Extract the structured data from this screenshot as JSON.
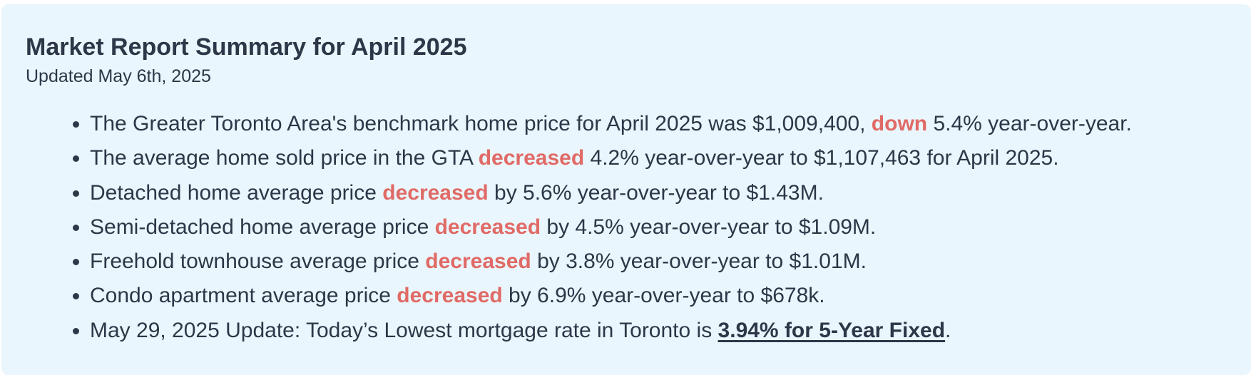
{
  "header": {
    "title": "Market Report Summary for April 2025",
    "subtitle": "Updated May 6th, 2025"
  },
  "items": [
    [
      {
        "kind": "plain",
        "text": "The Greater Toronto Area's benchmark home price for April 2025 was $1,009,400, "
      },
      {
        "kind": "highlight",
        "text": "down"
      },
      {
        "kind": "plain",
        "text": " 5.4% year-over-year."
      }
    ],
    [
      {
        "kind": "plain",
        "text": "The average home sold price in the GTA "
      },
      {
        "kind": "highlight",
        "text": "decreased"
      },
      {
        "kind": "plain",
        "text": " 4.2% year-over-year to $1,107,463 for April 2025."
      }
    ],
    [
      {
        "kind": "plain",
        "text": "Detached home average price "
      },
      {
        "kind": "highlight",
        "text": "decreased"
      },
      {
        "kind": "plain",
        "text": " by 5.6% year-over-year to $1.43M."
      }
    ],
    [
      {
        "kind": "plain",
        "text": "Semi-detached home average price "
      },
      {
        "kind": "highlight",
        "text": "decreased"
      },
      {
        "kind": "plain",
        "text": " by 4.5% year-over-year to $1.09M."
      }
    ],
    [
      {
        "kind": "plain",
        "text": "Freehold townhouse average price "
      },
      {
        "kind": "highlight",
        "text": "decreased"
      },
      {
        "kind": "plain",
        "text": " by 3.8% year-over-year to $1.01M."
      }
    ],
    [
      {
        "kind": "plain",
        "text": "Condo apartment average price "
      },
      {
        "kind": "highlight",
        "text": "decreased"
      },
      {
        "kind": "plain",
        "text": " by 6.9% year-over-year to $678k."
      }
    ],
    [
      {
        "kind": "plain",
        "text": "May 29, 2025 Update: Today’s Lowest mortgage rate in Toronto is "
      },
      {
        "kind": "link",
        "text": "3.94% for 5-Year Fixed"
      },
      {
        "kind": "plain",
        "text": "."
      }
    ]
  ]
}
